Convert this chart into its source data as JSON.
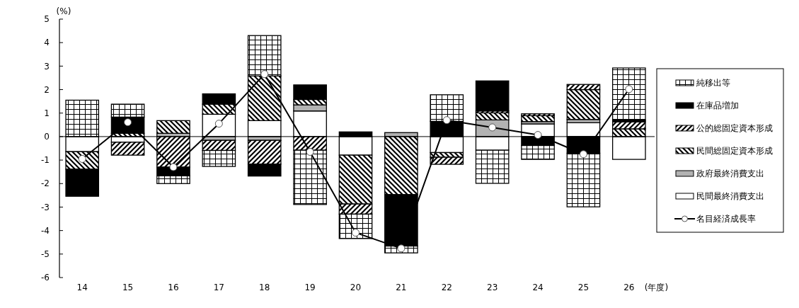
{
  "chart_data": {
    "type": "bar",
    "stacked": true,
    "xlabel": "(年度)",
    "ylabel": "(%)",
    "categories": [
      "14",
      "15",
      "16",
      "17",
      "18",
      "19",
      "20",
      "21",
      "22",
      "23",
      "24",
      "25",
      "26"
    ],
    "ylim": [
      -6,
      5
    ],
    "yticks": [
      -6,
      -5,
      -4,
      -3,
      -2,
      -1,
      0,
      1,
      2,
      3,
      4,
      5
    ],
    "legend": "right",
    "marker": "circle",
    "series": [
      {
        "name": "民間最終消費支出",
        "color": "#ffffff",
        "values": [
          -0.64,
          -0.24,
          0,
          0.95,
          0.68,
          1.09,
          -0.79,
          0,
          -0.68,
          -0.58,
          0.54,
          0.59,
          -0.97
        ]
      },
      {
        "name": "政府最終消費支出",
        "color": "#b2b2b2",
        "values": [
          0,
          0,
          0.14,
          -0.16,
          -0.16,
          0.26,
          null,
          0.17,
          null,
          0.71,
          0.1,
          0.14,
          null
        ]
      },
      {
        "name": "民間総固定資本形成",
        "color": "#000000",
        "values": [
          -0.75,
          0.14,
          0.54,
          0.43,
          1.9,
          0.23,
          -2.08,
          -2.47,
          -0.2,
          0.3,
          0.25,
          1.27,
          0.33
        ]
      },
      {
        "name": "公的総固定資本形成",
        "color": "#000000",
        "values": [
          0,
          -0.55,
          -1.3,
          -0.43,
          -1.01,
          -0.58,
          -0.43,
          0,
          -0.3,
          0.08,
          0.08,
          0.22,
          0.3
        ]
      },
      {
        "name": "在庫品増加",
        "color": "#000000",
        "values": [
          -1.15,
          0.69,
          -0.37,
          0.44,
          -0.51,
          0.62,
          0.2,
          -2.19,
          0.65,
          1.28,
          -0.38,
          -0.71,
          0.07
        ]
      },
      {
        "name": "純移出等",
        "color": "#000000",
        "values": [
          1.55,
          0.55,
          -0.33,
          -0.68,
          1.72,
          -2.31,
          -1.04,
          -0.29,
          1.13,
          -1.41,
          -0.59,
          -2.28,
          2.22
        ]
      },
      {
        "name": "名目経済成長率",
        "type": "line",
        "color": "#000000",
        "values": [
          -0.95,
          0.61,
          -1.3,
          0.55,
          2.66,
          -0.65,
          -4.09,
          -4.76,
          0.7,
          0.39,
          0.07,
          -0.75,
          2.02
        ]
      }
    ]
  }
}
